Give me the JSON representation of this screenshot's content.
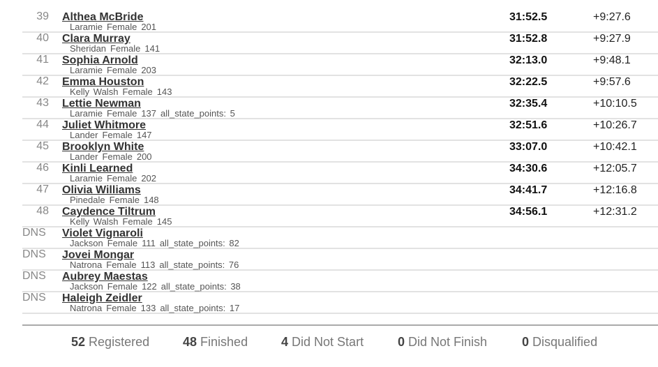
{
  "results": [
    {
      "rank": "39",
      "name": "Althea McBride",
      "team": "Laramie",
      "gender": "Female",
      "bib": "201",
      "extra": "",
      "time": "31:52.5",
      "gap": "+9:27.6"
    },
    {
      "rank": "40",
      "name": "Clara Murray",
      "team": "Sheridan",
      "gender": "Female",
      "bib": "141",
      "extra": "",
      "time": "31:52.8",
      "gap": "+9:27.9"
    },
    {
      "rank": "41",
      "name": "Sophia Arnold",
      "team": "Laramie",
      "gender": "Female",
      "bib": "203",
      "extra": "",
      "time": "32:13.0",
      "gap": "+9:48.1"
    },
    {
      "rank": "42",
      "name": "Emma Houston",
      "team": "Kelly Walsh",
      "gender": "Female",
      "bib": "143",
      "extra": "",
      "time": "32:22.5",
      "gap": "+9:57.6"
    },
    {
      "rank": "43",
      "name": "Lettie Newman",
      "team": "Laramie",
      "gender": "Female",
      "bib": "137",
      "extra": "all_state_points: 5",
      "time": "32:35.4",
      "gap": "+10:10.5"
    },
    {
      "rank": "44",
      "name": "Juliet Whitmore",
      "team": "Lander",
      "gender": "Female",
      "bib": "147",
      "extra": "",
      "time": "32:51.6",
      "gap": "+10:26.7"
    },
    {
      "rank": "45",
      "name": "Brooklyn White",
      "team": "Lander",
      "gender": "Female",
      "bib": "200",
      "extra": "",
      "time": "33:07.0",
      "gap": "+10:42.1"
    },
    {
      "rank": "46",
      "name": "Kinli Learned",
      "team": "Laramie",
      "gender": "Female",
      "bib": "202",
      "extra": "",
      "time": "34:30.6",
      "gap": "+12:05.7"
    },
    {
      "rank": "47",
      "name": "Olivia Williams",
      "team": "Pinedale",
      "gender": "Female",
      "bib": "148",
      "extra": "",
      "time": "34:41.7",
      "gap": "+12:16.8"
    },
    {
      "rank": "48",
      "name": "Caydence Tiltrum",
      "team": "Kelly Walsh",
      "gender": "Female",
      "bib": "145",
      "extra": "",
      "time": "34:56.1",
      "gap": "+12:31.2"
    },
    {
      "rank": "DNS",
      "name": "Violet Vignaroli",
      "team": "Jackson",
      "gender": "Female",
      "bib": "111",
      "extra": "all_state_points: 82",
      "time": "",
      "gap": ""
    },
    {
      "rank": "DNS",
      "name": "Jovei Mongar",
      "team": "Natrona",
      "gender": "Female",
      "bib": "113",
      "extra": "all_state_points: 76",
      "time": "",
      "gap": ""
    },
    {
      "rank": "DNS",
      "name": "Aubrey Maestas",
      "team": "Jackson",
      "gender": "Female",
      "bib": "122",
      "extra": "all_state_points: 38",
      "time": "",
      "gap": ""
    },
    {
      "rank": "DNS",
      "name": "Haleigh Zeidler",
      "team": "Natrona",
      "gender": "Female",
      "bib": "133",
      "extra": "all_state_points: 17",
      "time": "",
      "gap": ""
    }
  ],
  "summary": [
    {
      "count": "52",
      "label": "Registered"
    },
    {
      "count": "48",
      "label": "Finished"
    },
    {
      "count": "4",
      "label": "Did Not Start"
    },
    {
      "count": "0",
      "label": "Did Not Finish"
    },
    {
      "count": "0",
      "label": "Disqualified"
    }
  ]
}
